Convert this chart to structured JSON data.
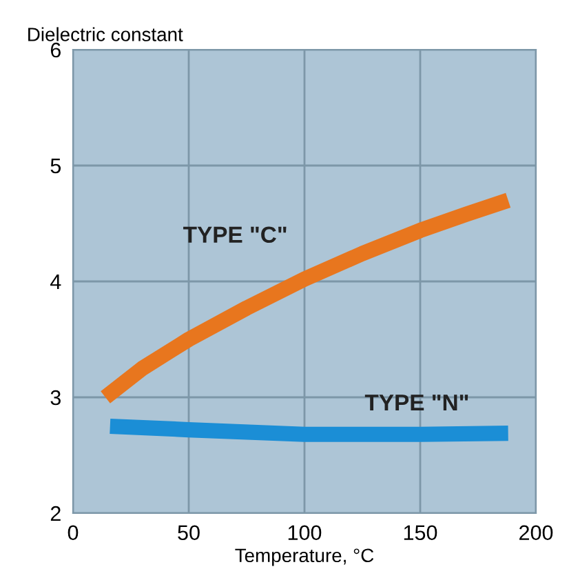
{
  "chart_data": {
    "type": "line",
    "xlabel": "Temperature, °C",
    "ylabel": "Dielectric constant",
    "xlim": [
      0,
      200
    ],
    "ylim": [
      2,
      6
    ],
    "xticks": [
      0,
      50,
      100,
      150,
      200
    ],
    "yticks": [
      2,
      3,
      4,
      5,
      6
    ],
    "grid": true,
    "marker": "none",
    "line_style": "solid",
    "series": [
      {
        "name": "TYPE \"C\"",
        "color": "#e8761e",
        "x": [
          14,
          30,
          50,
          75,
          100,
          125,
          150,
          170,
          188
        ],
        "values": [
          3.0,
          3.25,
          3.5,
          3.77,
          4.02,
          4.24,
          4.44,
          4.58,
          4.7
        ]
      },
      {
        "name": "TYPE \"N\"",
        "color": "#1b8ed6",
        "x": [
          16,
          50,
          100,
          150,
          188
        ],
        "values": [
          2.75,
          2.72,
          2.68,
          2.68,
          2.69
        ]
      }
    ]
  }
}
